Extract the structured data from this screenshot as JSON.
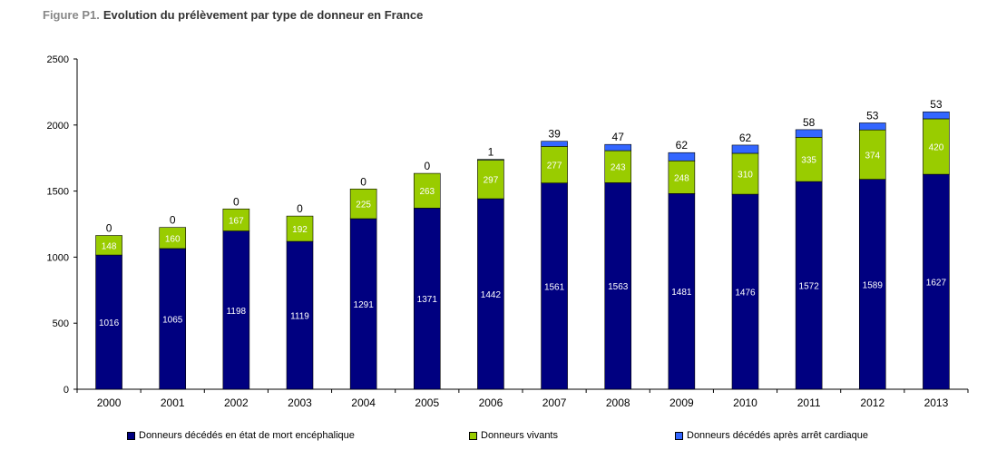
{
  "figure": {
    "prefix": "Figure P1.",
    "title": "Evolution du prélèvement par type de donneur en France"
  },
  "chart_data": {
    "type": "bar",
    "stacked": true,
    "categories": [
      "2000",
      "2001",
      "2002",
      "2003",
      "2004",
      "2005",
      "2006",
      "2007",
      "2008",
      "2009",
      "2010",
      "2011",
      "2012",
      "2013"
    ],
    "series": [
      {
        "name": "Donneurs décédés en état de mort encéphalique",
        "color": "#000080",
        "values": [
          1016,
          1065,
          1198,
          1119,
          1291,
          1371,
          1442,
          1561,
          1563,
          1481,
          1476,
          1572,
          1589,
          1627
        ]
      },
      {
        "name": "Donneurs vivants",
        "color": "#99CC00",
        "values": [
          148,
          160,
          167,
          192,
          225,
          263,
          297,
          277,
          243,
          248,
          310,
          335,
          374,
          420
        ]
      },
      {
        "name": "Donneurs décédés après arrêt cardiaque",
        "color": "#3366FF",
        "values": [
          0,
          0,
          0,
          0,
          0,
          0,
          1,
          39,
          47,
          62,
          62,
          58,
          53,
          53
        ]
      }
    ],
    "ylim": [
      0,
      2500
    ],
    "yticks": [
      0,
      500,
      1000,
      1500,
      2000,
      2500
    ],
    "grid": false,
    "legend_position": "bottom"
  }
}
